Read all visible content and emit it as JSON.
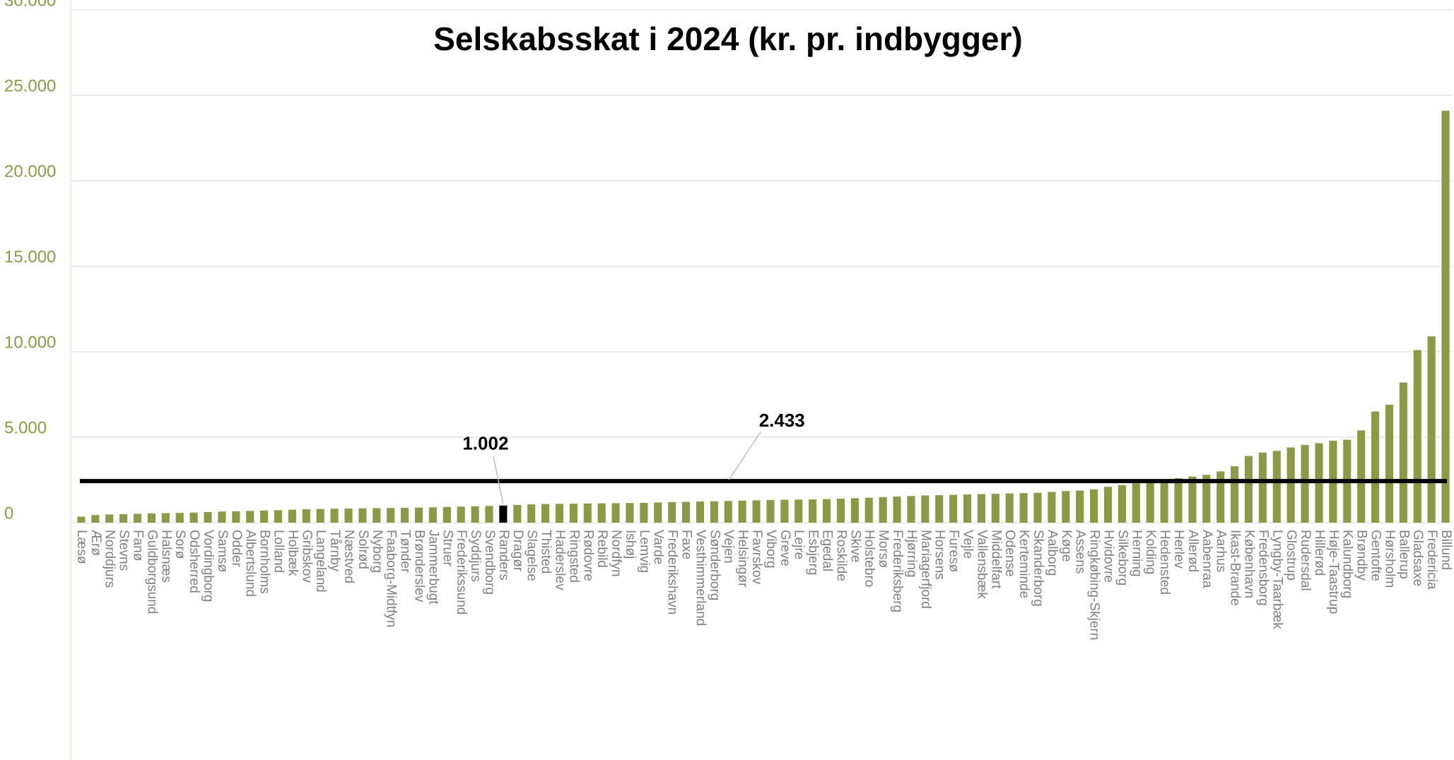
{
  "chart_data": {
    "type": "bar",
    "title": "Selskabsskat i 2024 (kr. pr. indbygger)",
    "categories": [
      "Læsø",
      "Ærø",
      "Norddjurs",
      "Stevns",
      "Fanø",
      "Guldborgsund",
      "Halsnæs",
      "Sorø",
      "Odsherred",
      "Vordingborg",
      "Samsø",
      "Odder",
      "Albertslund",
      "Bornholms",
      "Lolland",
      "Holbæk",
      "Gribskov",
      "Langeland",
      "Tårnby",
      "Næstved",
      "Solrød",
      "Nyborg",
      "Faaborg-Midtfyn",
      "Tønder",
      "Brønderslev",
      "Jammerbugt",
      "Struer",
      "Frederikssund",
      "Syddjurs",
      "Svendborg",
      "Randers",
      "Dragør",
      "Slagelse",
      "Thisted",
      "Haderslev",
      "Ringsted",
      "Rødovre",
      "Rebild",
      "Nordfyn",
      "Ishøj",
      "Lemvig",
      "Varde",
      "Frederikshavn",
      "Faxe",
      "Vesthimmerland",
      "Sønderborg",
      "Vejen",
      "Helsingør",
      "Favrskov",
      "Viborg",
      "Greve",
      "Lejre",
      "Esbjerg",
      "Egedal",
      "Roskilde",
      "Skive",
      "Holstebro",
      "Morsø",
      "Frederiksberg",
      "Hjørring",
      "Mariagerfjord",
      "Horsens",
      "Furesø",
      "Vejle",
      "Vallensbæk",
      "Middelfart",
      "Odense",
      "Kerteminde",
      "Skanderborg",
      "Aalborg",
      "Køge",
      "Assens",
      "Ringkøbing-Skjern",
      "Hvidovre",
      "Silkeborg",
      "Herning",
      "Kolding",
      "Hedensted",
      "Herlev",
      "Allerød",
      "Aabenraa",
      "Aarhus",
      "Ikast-Brande",
      "København",
      "Fredensborg",
      "Lyngby-Taarbæk",
      "Glostrup",
      "Rudersdal",
      "Hillerød",
      "Høje-Taastrup",
      "Kalundborg",
      "Brøndby",
      "Gentofte",
      "Hørsholm",
      "Ballerup",
      "Gladsaxe",
      "Fredericia",
      "Billund"
    ],
    "values": [
      350,
      450,
      480,
      500,
      520,
      540,
      560,
      570,
      590,
      620,
      650,
      670,
      690,
      710,
      730,
      760,
      790,
      800,
      820,
      830,
      840,
      850,
      860,
      870,
      880,
      900,
      920,
      940,
      960,
      980,
      1002,
      1040,
      1070,
      1090,
      1100,
      1110,
      1120,
      1130,
      1140,
      1150,
      1160,
      1180,
      1200,
      1220,
      1240,
      1250,
      1270,
      1290,
      1310,
      1330,
      1340,
      1350,
      1360,
      1380,
      1400,
      1430,
      1460,
      1500,
      1530,
      1560,
      1590,
      1610,
      1630,
      1650,
      1670,
      1690,
      1710,
      1730,
      1750,
      1800,
      1850,
      1880,
      1950,
      2100,
      2200,
      2300,
      2400,
      2500,
      2600,
      2700,
      2800,
      3000,
      3300,
      3900,
      4100,
      4200,
      4400,
      4550,
      4650,
      4800,
      4850,
      5400,
      6500,
      6900,
      8200,
      10100,
      10900,
      24100
    ],
    "value_labels": [
      null,
      null,
      null,
      null,
      null,
      null,
      null,
      null,
      null,
      null,
      null,
      null,
      null,
      null,
      null,
      null,
      null,
      null,
      null,
      null,
      null,
      null,
      null,
      null,
      null,
      null,
      null,
      null,
      null,
      null,
      "1.002",
      null,
      null,
      null,
      null,
      null,
      null,
      null,
      null,
      null,
      null,
      null,
      null,
      null,
      null,
      null,
      null,
      null,
      null,
      null,
      null,
      null,
      null,
      null,
      null,
      null,
      null,
      null,
      null,
      null,
      null,
      null,
      null,
      null,
      null,
      null,
      null,
      null,
      null,
      null,
      null,
      null,
      null,
      null,
      null,
      null,
      null,
      null,
      null,
      null,
      null,
      null,
      null,
      null,
      null,
      null,
      null,
      null,
      null,
      null,
      null,
      null,
      null,
      null,
      null,
      null,
      null,
      null
    ],
    "color": "#8c9a48",
    "highlight_category": "Randers",
    "highlight_color": "#000000",
    "reference_line": {
      "value": 2433,
      "label": "2.433",
      "color": "#000000"
    },
    "ylim": [
      0,
      30000
    ],
    "yticks": [
      0,
      {
        "value": 5000,
        "label": "5.000"
      },
      {
        "value": 10000,
        "label": "10.000"
      },
      {
        "value": 15000,
        "label": "15.000"
      },
      {
        "value": 20000,
        "label": "20.000"
      },
      {
        "value": 25000,
        "label": "25.000"
      },
      {
        "value": 30000,
        "label": "30.000"
      }
    ],
    "grid": true
  }
}
